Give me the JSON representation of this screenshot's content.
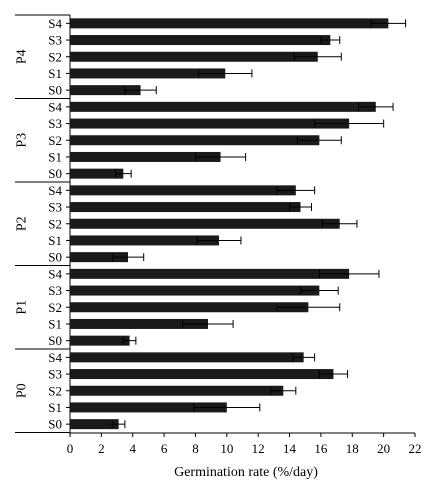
{
  "chart_data": {
    "type": "bar",
    "orientation": "horizontal",
    "xlabel": "Germination rate (%/day)",
    "xlim": [
      0,
      22
    ],
    "xticks": [
      0,
      2,
      4,
      6,
      8,
      10,
      12,
      14,
      16,
      18,
      20,
      22
    ],
    "grid": false,
    "groups": [
      {
        "name": "P4",
        "categories": [
          "S4",
          "S3",
          "S2",
          "S1",
          "S0"
        ],
        "values": [
          20.3,
          16.6,
          15.8,
          9.9,
          4.5
        ],
        "errors": [
          1.1,
          0.6,
          1.5,
          1.7,
          1.0
        ]
      },
      {
        "name": "P3",
        "categories": [
          "S4",
          "S3",
          "S2",
          "S1",
          "S0"
        ],
        "values": [
          19.5,
          17.8,
          15.9,
          9.6,
          3.4
        ],
        "errors": [
          1.1,
          2.2,
          1.4,
          1.6,
          0.5
        ]
      },
      {
        "name": "P2",
        "categories": [
          "S4",
          "S3",
          "S2",
          "S1",
          "S0"
        ],
        "values": [
          14.4,
          14.7,
          17.2,
          9.5,
          3.7
        ],
        "errors": [
          1.2,
          0.7,
          1.1,
          1.4,
          1.0
        ]
      },
      {
        "name": "P1",
        "categories": [
          "S4",
          "S3",
          "S2",
          "S1",
          "S0"
        ],
        "values": [
          17.8,
          15.9,
          15.2,
          8.8,
          3.8
        ],
        "errors": [
          1.9,
          1.2,
          2.0,
          1.6,
          0.4
        ]
      },
      {
        "name": "P0",
        "categories": [
          "S4",
          "S3",
          "S2",
          "S1",
          "S0"
        ],
        "values": [
          14.9,
          16.8,
          13.6,
          10.0,
          3.1
        ],
        "errors": [
          0.7,
          0.9,
          0.8,
          2.1,
          0.4
        ]
      }
    ]
  },
  "colors": {
    "bar": "#1a1a1a",
    "axis": "#000000"
  }
}
